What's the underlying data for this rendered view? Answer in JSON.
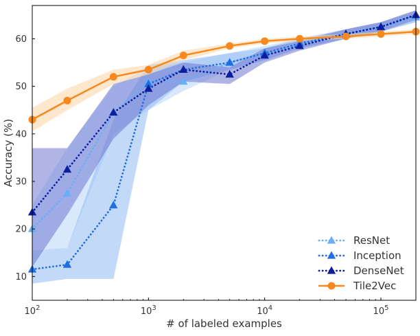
{
  "chart_data": {
    "type": "line",
    "title": "",
    "xlabel": "# of labeled examples",
    "ylabel": "Accuracy (%)",
    "x_scale": "log",
    "xlim": [
      100,
      200000
    ],
    "ylim": [
      5,
      67
    ],
    "x_ticks": [
      {
        "value": 100,
        "base": "10",
        "exp": "2"
      },
      {
        "value": 1000,
        "base": "10",
        "exp": "3"
      },
      {
        "value": 10000,
        "base": "10",
        "exp": "4"
      },
      {
        "value": 100000,
        "base": "10",
        "exp": "5"
      }
    ],
    "y_ticks": [
      10,
      20,
      30,
      40,
      50,
      60
    ],
    "grid": false,
    "legend_position": "lower-right",
    "x": [
      100,
      200,
      500,
      1000,
      2000,
      5000,
      10000,
      20000,
      50000,
      100000,
      200000
    ],
    "series": [
      {
        "name": "ResNet",
        "color": "#6aaef5",
        "band_color": "#b9d7fa",
        "line_style": "dotted",
        "marker": "triangle",
        "values": [
          20.0,
          27.5,
          44.5,
          51.0,
          51.0,
          55.0,
          57.0,
          59.0,
          61.0,
          62.5,
          64.5
        ],
        "lower": [
          15.5,
          16.0,
          40.0,
          45.0,
          49.0,
          53.5,
          55.5,
          58.0,
          60.0,
          61.5,
          63.5
        ],
        "upper": [
          25.0,
          37.0,
          50.0,
          54.0,
          55.0,
          57.0,
          58.5,
          60.0,
          62.0,
          63.5,
          65.5
        ]
      },
      {
        "name": "Inception",
        "color": "#1f6fe0",
        "band_color": "#8fb9f2",
        "line_style": "dotted",
        "marker": "triangle",
        "values": [
          11.5,
          12.5,
          25.0,
          50.5,
          53.5,
          55.0,
          57.0,
          59.0,
          61.0,
          62.5,
          65.0
        ],
        "lower": [
          8.5,
          9.5,
          9.5,
          45.0,
          51.0,
          53.5,
          55.5,
          58.0,
          60.0,
          61.5,
          63.5
        ],
        "upper": [
          15.5,
          16.0,
          43.0,
          54.5,
          55.5,
          57.0,
          58.0,
          60.0,
          62.0,
          63.5,
          66.0
        ]
      },
      {
        "name": "DenseNet",
        "color": "#0b1f9e",
        "band_color": "#6f78cf",
        "line_style": "dotted",
        "marker": "triangle",
        "values": [
          23.5,
          32.5,
          44.5,
          49.5,
          53.5,
          52.5,
          56.5,
          58.5,
          61.0,
          62.5,
          65.0
        ],
        "lower": [
          12.0,
          23.0,
          39.0,
          46.0,
          51.0,
          50.5,
          55.0,
          57.5,
          60.0,
          61.5,
          64.0
        ],
        "upper": [
          37.0,
          37.0,
          50.5,
          52.5,
          55.0,
          54.0,
          58.0,
          59.5,
          62.0,
          63.5,
          66.0
        ]
      },
      {
        "name": "Tile2Vec",
        "color": "#f5891f",
        "band_color": "#fbd3a4",
        "line_style": "solid",
        "marker": "circle",
        "values": [
          43.0,
          47.0,
          52.0,
          53.5,
          56.5,
          58.5,
          59.5,
          60.0,
          60.5,
          61.0,
          61.5
        ],
        "lower": [
          40.5,
          45.0,
          50.5,
          52.5,
          55.5,
          58.0,
          59.0,
          59.5,
          60.0,
          60.5,
          61.0
        ],
        "upper": [
          45.5,
          49.5,
          53.5,
          54.5,
          57.5,
          59.0,
          60.0,
          60.5,
          61.0,
          61.5,
          62.0
        ]
      }
    ]
  }
}
